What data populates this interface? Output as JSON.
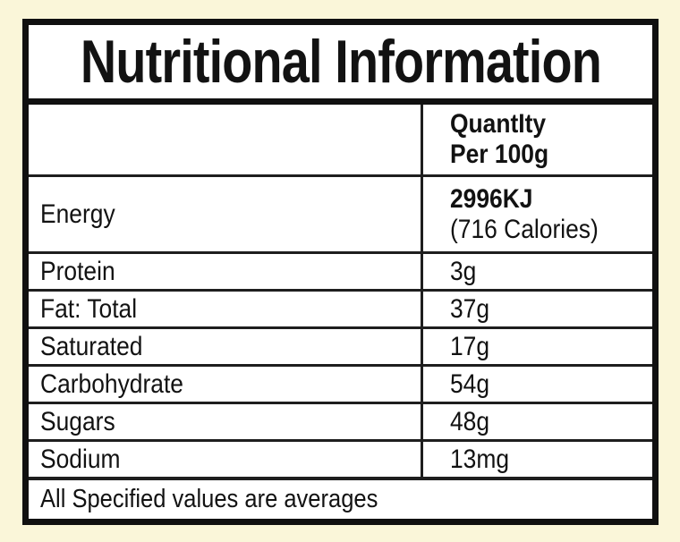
{
  "page": {
    "background_color": "#FAF6D9"
  },
  "label": {
    "title": "Nutritional Information",
    "column_header": "QuantIty\nPer 100g",
    "energy_row": {
      "name": "Energy",
      "value_line1": "2996KJ",
      "value_line2": "(716 Calories)"
    },
    "rows": [
      {
        "name": "Protein",
        "value": "3g"
      },
      {
        "name": "Fat: Total",
        "value": "37g"
      },
      {
        "name": "Saturated",
        "value": "17g"
      },
      {
        "name": "Carbohydrate",
        "value": "54g"
      },
      {
        "name": "Sugars",
        "value": "48g"
      },
      {
        "name": "Sodium",
        "value": "13mg"
      }
    ],
    "footer_note": "All Specified values are averages",
    "colors": {
      "border": "#101010",
      "text": "#121212",
      "table_background": "#FFFFFF",
      "page_background": "#FAF6D9"
    }
  }
}
